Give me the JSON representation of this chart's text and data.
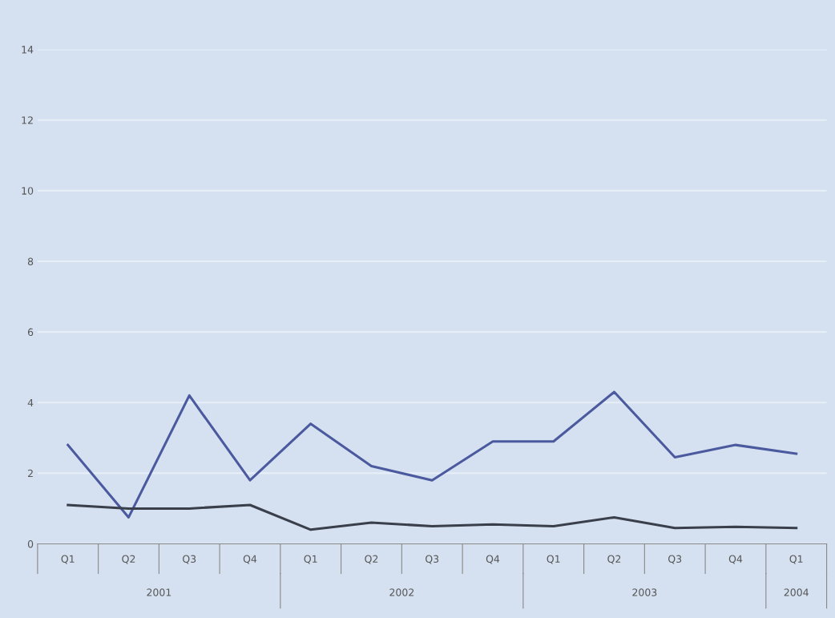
{
  "chart_data": {
    "type": "line",
    "categories": [
      "Q1",
      "Q2",
      "Q3",
      "Q4",
      "Q1",
      "Q2",
      "Q3",
      "Q4",
      "Q1",
      "Q2",
      "Q3",
      "Q4",
      "Q1"
    ],
    "series": [
      {
        "color": "#4b5a9e",
        "values": [
          2.8,
          0.75,
          4.2,
          1.8,
          3.4,
          2.2,
          1.8,
          2.9,
          2.9,
          4.3,
          2.45,
          2.8,
          2.55
        ]
      },
      {
        "color": "#3a3f4c",
        "values": [
          1.1,
          1.0,
          1.0,
          1.1,
          0.4,
          0.6,
          0.5,
          0.55,
          0.5,
          0.75,
          0.45,
          0.48,
          0.45
        ]
      }
    ],
    "annotations": [
      "2001",
      "2002",
      "2003",
      "2004"
    ],
    "ylim": [
      0,
      14
    ],
    "yticks": [
      0,
      2,
      4,
      6,
      8,
      10,
      12,
      14
    ],
    "grid": "y",
    "marker": "none",
    "line_style": "solid"
  }
}
